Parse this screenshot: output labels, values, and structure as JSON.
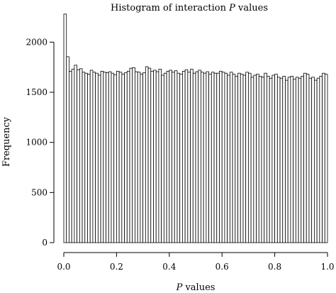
{
  "chart_data": {
    "type": "bar",
    "title_main": "Histogram of interaction ",
    "title_italic": "P",
    "title_rest": " values",
    "xlabel_italic": "P",
    "xlabel_rest": " values",
    "ylabel": "Frequency",
    "xlim": [
      0,
      1
    ],
    "ylim": [
      0,
      2300
    ],
    "xticks": [
      "0.0",
      "0.2",
      "0.4",
      "0.6",
      "0.8",
      "1.0"
    ],
    "yticks": [
      "0",
      "500",
      "1000",
      "1500",
      "2000"
    ],
    "bin_width": 0.01,
    "values": [
      2280,
      1855,
      1710,
      1730,
      1770,
      1725,
      1735,
      1700,
      1690,
      1680,
      1720,
      1700,
      1690,
      1670,
      1710,
      1700,
      1695,
      1705,
      1690,
      1675,
      1710,
      1700,
      1680,
      1695,
      1710,
      1740,
      1745,
      1705,
      1700,
      1680,
      1695,
      1755,
      1740,
      1710,
      1720,
      1705,
      1730,
      1670,
      1690,
      1710,
      1720,
      1700,
      1715,
      1690,
      1680,
      1710,
      1725,
      1700,
      1730,
      1690,
      1705,
      1720,
      1700,
      1690,
      1705,
      1680,
      1700,
      1690,
      1690,
      1710,
      1700,
      1690,
      1670,
      1700,
      1680,
      1660,
      1690,
      1680,
      1670,
      1700,
      1690,
      1650,
      1670,
      1680,
      1660,
      1650,
      1690,
      1660,
      1640,
      1670,
      1680,
      1650,
      1640,
      1660,
      1620,
      1650,
      1660,
      1630,
      1650,
      1640,
      1660,
      1690,
      1680,
      1640,
      1650,
      1620,
      1640,
      1660,
      1690,
      1680
    ],
    "grid": false,
    "legend": "none"
  }
}
